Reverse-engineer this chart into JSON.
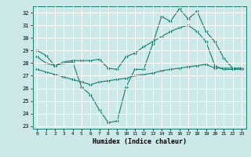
{
  "xlabel": "Humidex (Indice chaleur)",
  "xlim": [
    -0.5,
    23.5
  ],
  "ylim": [
    22.8,
    32.5
  ],
  "yticks": [
    23,
    24,
    25,
    26,
    27,
    28,
    29,
    30,
    31,
    32
  ],
  "xticks": [
    0,
    1,
    2,
    3,
    4,
    5,
    6,
    7,
    8,
    9,
    10,
    11,
    12,
    13,
    14,
    15,
    16,
    17,
    18,
    19,
    20,
    21,
    22,
    23
  ],
  "background_color": "#cce8e8",
  "grid_color": "#ffffff",
  "line_color": "#1a7a6e",
  "line1_y": [
    29.0,
    28.6,
    27.8,
    28.0,
    28.1,
    26.1,
    25.5,
    24.3,
    23.3,
    23.4,
    26.1,
    27.5,
    27.5,
    29.5,
    31.7,
    31.3,
    32.3,
    31.5,
    32.1,
    30.5,
    29.7,
    28.4,
    27.6,
    27.6
  ],
  "line2_y": [
    28.5,
    28.0,
    27.8,
    28.1,
    28.2,
    28.2,
    28.2,
    28.3,
    27.6,
    27.5,
    28.5,
    28.8,
    29.3,
    29.7,
    30.1,
    30.5,
    30.8,
    31.0,
    30.5,
    29.7,
    27.8,
    27.5,
    27.5,
    27.5
  ],
  "line3_y": [
    27.5,
    27.3,
    27.1,
    26.9,
    26.7,
    26.5,
    26.3,
    26.5,
    26.6,
    26.7,
    26.8,
    27.0,
    27.1,
    27.2,
    27.4,
    27.5,
    27.6,
    27.7,
    27.8,
    27.9,
    27.6,
    27.6,
    27.6,
    27.6
  ]
}
